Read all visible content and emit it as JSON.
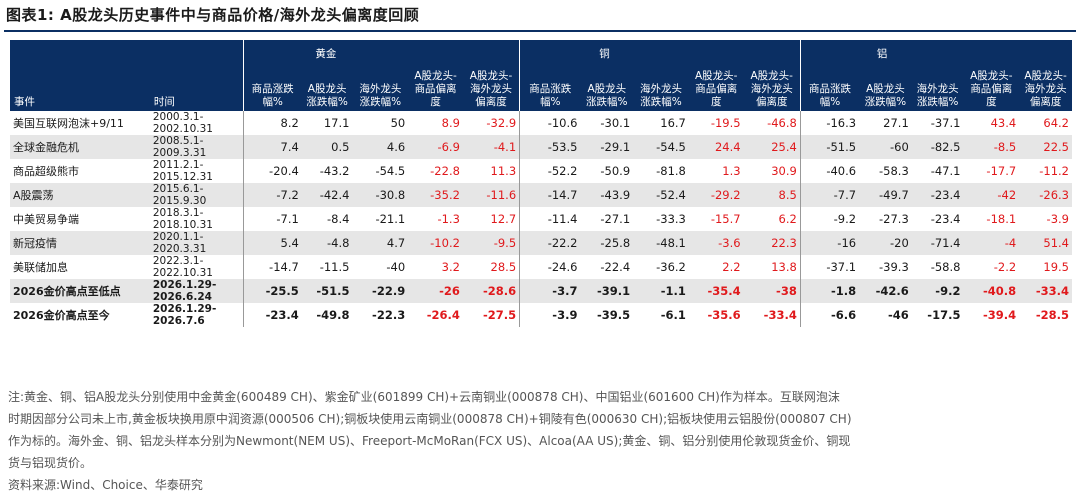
{
  "title": "图表1:  A股龙头历史事件中与商品价格/海外龙头偏离度回顾",
  "header": {
    "event": "事件",
    "time": "时间",
    "groups": [
      "黄金",
      "铜",
      "铝"
    ],
    "sub": [
      "商品涨跌幅%",
      "A股龙头涨跌幅%",
      "海外龙头涨跌幅%",
      "A股龙头-商品偏离度",
      "A股龙头-海外龙头偏离度"
    ]
  },
  "rows": [
    {
      "event": "美国互联网泡沫+9/11",
      "period": [
        "2000.3.1-",
        "2002.10.31"
      ],
      "gold": [
        "8.2",
        "17.1",
        "50",
        "8.9",
        "-32.9"
      ],
      "copper": [
        "-10.6",
        "-30.1",
        "16.7",
        "-19.5",
        "-46.8"
      ],
      "aluminum": [
        "-16.3",
        "27.1",
        "-37.1",
        "43.4",
        "64.2"
      ]
    },
    {
      "event": "全球金融危机",
      "period": [
        "2008.5.1-",
        "2009.3.31"
      ],
      "gold": [
        "7.4",
        "0.5",
        "4.6",
        "-6.9",
        "-4.1"
      ],
      "copper": [
        "-53.5",
        "-29.1",
        "-54.5",
        "24.4",
        "25.4"
      ],
      "aluminum": [
        "-51.5",
        "-60",
        "-82.5",
        "-8.5",
        "22.5"
      ]
    },
    {
      "event": "商品超级熊市",
      "period": [
        "2011.2.1-",
        "2015.12.31"
      ],
      "gold": [
        "-20.4",
        "-43.2",
        "-54.5",
        "-22.8",
        "11.3"
      ],
      "copper": [
        "-52.2",
        "-50.9",
        "-81.8",
        "1.3",
        "30.9"
      ],
      "aluminum": [
        "-40.6",
        "-58.3",
        "-47.1",
        "-17.7",
        "-11.2"
      ]
    },
    {
      "event": "A股震荡",
      "period": [
        "2015.6.1-",
        "2015.9.30"
      ],
      "gold": [
        "-7.2",
        "-42.4",
        "-30.8",
        "-35.2",
        "-11.6"
      ],
      "copper": [
        "-14.7",
        "-43.9",
        "-52.4",
        "-29.2",
        "8.5"
      ],
      "aluminum": [
        "-7.7",
        "-49.7",
        "-23.4",
        "-42",
        "-26.3"
      ]
    },
    {
      "event": "中美贸易争端",
      "period": [
        "2018.3.1-",
        "2018.10.31"
      ],
      "gold": [
        "-7.1",
        "-8.4",
        "-21.1",
        "-1.3",
        "12.7"
      ],
      "copper": [
        "-11.4",
        "-27.1",
        "-33.3",
        "-15.7",
        "6.2"
      ],
      "aluminum": [
        "-9.2",
        "-27.3",
        "-23.4",
        "-18.1",
        "-3.9"
      ]
    },
    {
      "event": "新冠疫情",
      "period": [
        "2020.1.1-",
        "2020.3.31"
      ],
      "gold": [
        "5.4",
        "-4.8",
        "4.7",
        "-10.2",
        "-9.5"
      ],
      "copper": [
        "-22.2",
        "-25.8",
        "-48.1",
        "-3.6",
        "22.3"
      ],
      "aluminum": [
        "-16",
        "-20",
        "-71.4",
        "-4",
        "51.4"
      ]
    },
    {
      "event": "美联储加息",
      "period": [
        "2022.3.1-",
        "2022.10.31"
      ],
      "gold": [
        "-14.7",
        "-11.5",
        "-40",
        "3.2",
        "28.5"
      ],
      "copper": [
        "-24.6",
        "-22.4",
        "-36.2",
        "2.2",
        "13.8"
      ],
      "aluminum": [
        "-37.1",
        "-39.3",
        "-58.8",
        "-2.2",
        "19.5"
      ]
    },
    {
      "event": "2026金价高点至低点",
      "period": [
        "2026.1.29-",
        "2026.6.24"
      ],
      "gold": [
        "-25.5",
        "-51.5",
        "-22.9",
        "-26",
        "-28.6"
      ],
      "copper": [
        "-3.7",
        "-39.1",
        "-1.1",
        "-35.4",
        "-38"
      ],
      "aluminum": [
        "-1.8",
        "-42.6",
        "-9.2",
        "-40.8",
        "-33.4"
      ]
    },
    {
      "event": "2026金价高点至今",
      "period": [
        "2026.1.29-",
        "2026.7.6"
      ],
      "gold": [
        "-23.4",
        "-49.8",
        "-22.3",
        "-26.4",
        "-27.5"
      ],
      "copper": [
        "-3.9",
        "-39.5",
        "-6.1",
        "-35.6",
        "-33.4"
      ],
      "aluminum": [
        "-6.6",
        "-46",
        "-17.5",
        "-39.4",
        "-28.5"
      ]
    }
  ],
  "notes": [
    "注:黄金、铜、铝A股龙头分别使用中金黄金(600489 CH)、紫金矿业(601899 CH)+云南铜业(000878 CH)、中国铝业(601600 CH)作为样本。互联网泡沫",
    "时期因部分公司未上市,黄金板块换用原中润资源(000506 CH);铜板块使用云南铜业(000878 CH)+铜陵有色(000630 CH);铝板块使用云铝股份(000807 CH)",
    "作为标的。海外金、铜、铝龙头样本分别为Newmont(NEM US)、Freeport-McMoRan(FCX US)、Alcoa(AA US);黄金、铜、铝分别使用伦敦现货金价、铜现",
    "货与铝现货价。",
    "资料来源:Wind、Choice、华泰研究"
  ],
  "colors": {
    "header_bg": "#0b2f63",
    "negative_deviation": "#e0191c",
    "shade": "#e6e6e6"
  }
}
